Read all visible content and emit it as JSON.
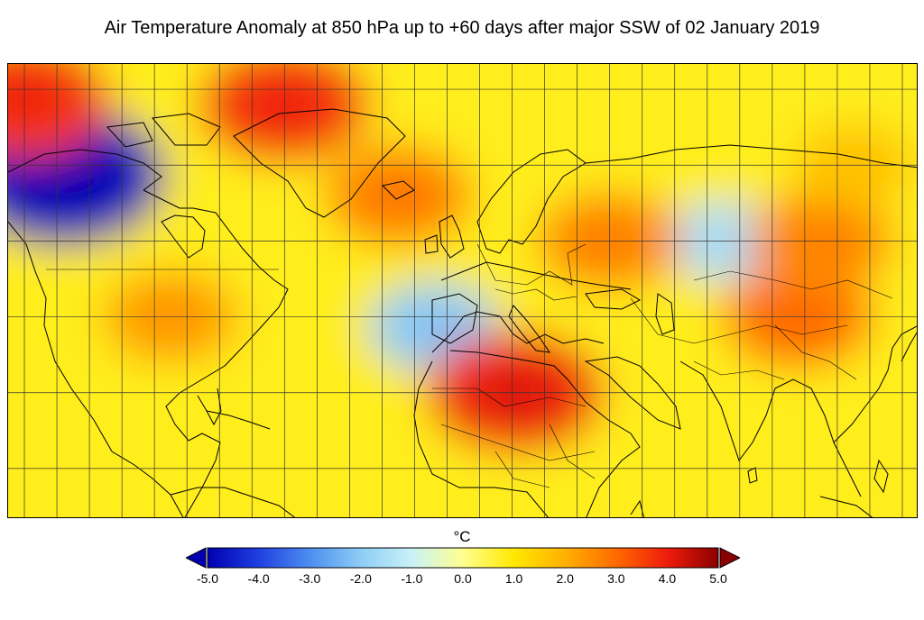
{
  "title": "Air Temperature Anomaly at 850 hPa up to +60 days after major SSW of 02 January 2019",
  "colorbar": {
    "unit": "°C",
    "ticks": [
      "-5.0",
      "-4.0",
      "-3.0",
      "-2.0",
      "-1.0",
      "0.0",
      "1.0",
      "2.0",
      "3.0",
      "4.0",
      "5.0"
    ],
    "range": [
      -5.0,
      5.0
    ],
    "extend": "both",
    "colors": [
      "#0000b0",
      "#1f3fe0",
      "#4d8ef0",
      "#8ecdf5",
      "#c9f2f7",
      "#ffff90",
      "#ffe800",
      "#ffb000",
      "#ff6a00",
      "#ee1c0c",
      "#8b0000"
    ]
  },
  "chart_data": {
    "type": "heatmap",
    "title": "Air Temperature Anomaly at 850 hPa up to +60 days after major SSW of 02 January 2019",
    "unit": "°C",
    "vmin": -5.0,
    "vmax": 5.0,
    "grid": true,
    "projection": "equirectangular",
    "lon_range": [
      -125,
      155
    ],
    "lat_range": [
      -10,
      80
    ],
    "anomaly_centers": [
      {
        "lon": -108,
        "lat": 58,
        "value": -4.8
      },
      {
        "lon": 6,
        "lat": 28,
        "value": -2.0
      },
      {
        "lon": 95,
        "lat": 45,
        "value": -1.5
      },
      {
        "lon": -120,
        "lat": 73,
        "value": 3.6
      },
      {
        "lon": -40,
        "lat": 72,
        "value": 3.6
      },
      {
        "lon": 31,
        "lat": 15,
        "value": 3.8
      },
      {
        "lon": 118,
        "lat": 30,
        "value": 2.8
      },
      {
        "lon": 125,
        "lat": 45,
        "value": 2.5
      },
      {
        "lon": -5,
        "lat": 54,
        "value": 2.6
      },
      {
        "lon": 60,
        "lat": 45,
        "value": 2.5
      },
      {
        "lon": -75,
        "lat": 30,
        "value": 2.2
      },
      {
        "lon": 135,
        "lat": 60,
        "value": 1.6
      }
    ]
  }
}
